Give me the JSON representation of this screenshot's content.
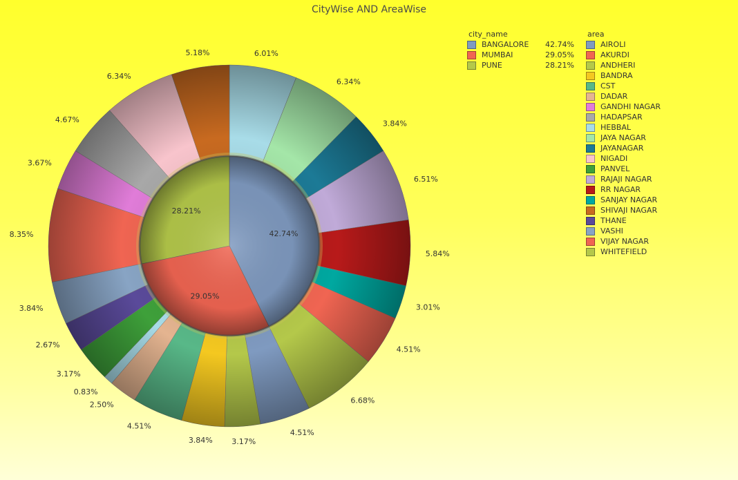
{
  "chart_data": {
    "type": "pie",
    "title": "CityWise AND AreaWise",
    "inner_ring": {
      "legend_title": "city_name",
      "slices": [
        {
          "label": "BANGALORE",
          "value": 42.74,
          "text": "42.74%",
          "color": "#7f9ac0"
        },
        {
          "label": "MUMBAI",
          "value": 29.05,
          "text": "29.05%",
          "color": "#f06552"
        },
        {
          "label": "PUNE",
          "value": 28.21,
          "text": "28.21%",
          "color": "#b4c84a"
        }
      ]
    },
    "outer_ring": {
      "legend_title": "area",
      "slices": [
        {
          "label": "HEBBAL",
          "value": 6.01,
          "text": "6.01%",
          "color": "#a8dce8"
        },
        {
          "label": "JAYA NAGAR",
          "value": 6.34,
          "text": "6.34%",
          "color": "#a4e6a8"
        },
        {
          "label": "JAYANAGAR",
          "value": 3.84,
          "text": "3.84%",
          "color": "#1c7a96"
        },
        {
          "label": "RAJAJI NAGAR",
          "value": 6.51,
          "text": "6.51%",
          "color": "#c0aad8"
        },
        {
          "label": "RR NAGAR",
          "value": 5.84,
          "text": "5.84%",
          "color": "#b81a1a"
        },
        {
          "label": "SANJAY NAGAR",
          "value": 3.01,
          "text": "3.01%",
          "color": "#00a8a0"
        },
        {
          "label": "VIJAY NAGAR",
          "value": 4.51,
          "text": "4.51%",
          "color": "#f06552"
        },
        {
          "label": "WHITEFIELD",
          "value": 6.68,
          "text": "6.68%",
          "color": "#b4c84a"
        },
        {
          "label": "AIROLI",
          "value": 4.51,
          "text": "4.51%",
          "color": "#7f9ac0"
        },
        {
          "label": "ANDHERI",
          "value": 3.17,
          "text": "3.17%",
          "color": "#b4c84a"
        },
        {
          "label": "BANDRA",
          "value": 3.84,
          "text": "3.84%",
          "color": "#f4c820"
        },
        {
          "label": "CST",
          "value": 4.51,
          "text": "4.51%",
          "color": "#58b888"
        },
        {
          "label": "DADAR",
          "value": 2.5,
          "text": "2.50%",
          "color": "#e4b490"
        },
        {
          "label": "HEBBAL",
          "value": 0.83,
          "text": "0.83%",
          "color": "#a8dce8"
        },
        {
          "label": "PANVEL",
          "value": 3.17,
          "text": "3.17%",
          "color": "#3ea03a"
        },
        {
          "label": "THANE",
          "value": 2.67,
          "text": "2.67%",
          "color": "#5a4a9a"
        },
        {
          "label": "VASHI",
          "value": 3.84,
          "text": "3.84%",
          "color": "#88a4c4"
        },
        {
          "label": "AKURDI",
          "value": 8.35,
          "text": "8.35%",
          "color": "#f06552"
        },
        {
          "label": "GANDHI NAGAR",
          "value": 3.67,
          "text": "3.67%",
          "color": "#e07cd8"
        },
        {
          "label": "HADAPSAR",
          "value": 4.67,
          "text": "4.67%",
          "color": "#a8a8a8"
        },
        {
          "label": "NIGADI",
          "value": 6.34,
          "text": "6.34%",
          "color": "#f8c4cc"
        },
        {
          "label": "SHIVAJI NAGAR",
          "value": 5.18,
          "text": "5.18%",
          "color": "#c86a20"
        }
      ]
    },
    "legend_placement": "right"
  },
  "legends": {
    "city": {
      "title": "city_name",
      "items": [
        {
          "name": "BANGALORE",
          "pct": "42.74%",
          "color": "#7f9ac0"
        },
        {
          "name": "MUMBAI",
          "pct": "29.05%",
          "color": "#f06552"
        },
        {
          "name": "PUNE",
          "pct": "28.21%",
          "color": "#b4c84a"
        }
      ]
    },
    "area": {
      "title": "area",
      "items": [
        {
          "name": "AIROLI",
          "color": "#7f9ac0"
        },
        {
          "name": "AKURDI",
          "color": "#f06552"
        },
        {
          "name": "ANDHERI",
          "color": "#b4c84a"
        },
        {
          "name": "BANDRA",
          "color": "#f4c820"
        },
        {
          "name": "CST",
          "color": "#58b888"
        },
        {
          "name": "DADAR",
          "color": "#e4b490"
        },
        {
          "name": "GANDHI NAGAR",
          "color": "#e07cd8"
        },
        {
          "name": "HADAPSAR",
          "color": "#a8a8a8"
        },
        {
          "name": "HEBBAL",
          "color": "#a8dce8"
        },
        {
          "name": "JAYA NAGAR",
          "color": "#a4e6a8"
        },
        {
          "name": "JAYANAGAR",
          "color": "#1c7a96"
        },
        {
          "name": "NIGADI",
          "color": "#f8c4cc"
        },
        {
          "name": "PANVEL",
          "color": "#3ea03a"
        },
        {
          "name": "RAJAJI NAGAR",
          "color": "#c0aad8"
        },
        {
          "name": "RR NAGAR",
          "color": "#b81a1a"
        },
        {
          "name": "SANJAY NAGAR",
          "color": "#00a8a0"
        },
        {
          "name": "SHIVAJI NAGAR",
          "color": "#c86a20"
        },
        {
          "name": "THANE",
          "color": "#5a4a9a"
        },
        {
          "name": "VASHI",
          "color": "#88a4c4"
        },
        {
          "name": "VIJAY NAGAR",
          "color": "#f06552"
        },
        {
          "name": "WHITEFIELD",
          "color": "#b4c84a"
        }
      ]
    }
  }
}
